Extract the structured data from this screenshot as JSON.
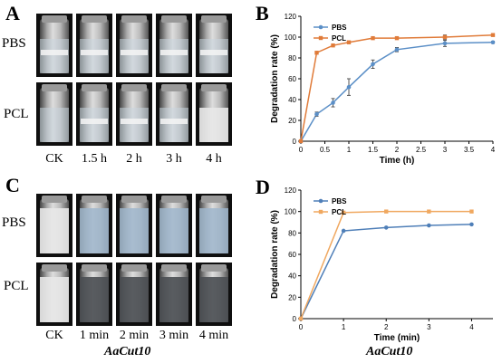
{
  "panels": {
    "A": {
      "letter": "A",
      "rows": [
        "PBS",
        "PCL"
      ],
      "conditions": [
        "CK",
        "1.5 h",
        "2 h",
        "3 h",
        "4 h"
      ]
    },
    "B": {
      "letter": "B"
    },
    "C": {
      "letter": "C",
      "rows": [
        "PBS",
        "PCL"
      ],
      "conditions": [
        "CK",
        "1 min",
        "2 min",
        "3 min",
        "4 min"
      ],
      "caption": "AaCut10"
    },
    "D": {
      "letter": "D",
      "caption": "AaCut10"
    }
  },
  "colors": {
    "pbs_B": "#5b8fc7",
    "pcl_B": "#e07b39",
    "pbs_D": "#4f7fb8",
    "pcl_D": "#f0a860"
  },
  "chart_data": [
    {
      "id": "B",
      "type": "line",
      "xlabel": "Time (h)",
      "ylabel": "Degradation rate (%)",
      "xlim": [
        0,
        4
      ],
      "ylim": [
        0,
        120
      ],
      "xticks": [
        "0",
        "0.5",
        "1",
        "1.5",
        "2",
        "2.5",
        "3",
        "3.5",
        "4"
      ],
      "yticks": [
        "0",
        "20",
        "40",
        "60",
        "80",
        "100",
        "120"
      ],
      "legend_position": "top-left",
      "series": [
        {
          "name": "PBS",
          "x": [
            0,
            0.33,
            0.67,
            1,
            1.5,
            2,
            3,
            4
          ],
          "y": [
            0,
            26,
            37,
            52,
            74,
            88,
            94,
            95
          ],
          "err": [
            0,
            2,
            4,
            8,
            4,
            2,
            3,
            1
          ]
        },
        {
          "name": "PCL",
          "x": [
            0,
            0.33,
            0.67,
            1,
            1.5,
            2,
            3,
            4
          ],
          "y": [
            0,
            85,
            92,
            95,
            99,
            99,
            100,
            102
          ],
          "err": [
            0,
            1,
            1,
            1,
            1,
            1,
            2,
            1
          ]
        }
      ]
    },
    {
      "id": "D",
      "type": "line",
      "xlabel": "Time (min)",
      "ylabel": "Degradation rate (%)",
      "xlim": [
        0,
        4.5
      ],
      "ylim": [
        0,
        120
      ],
      "xticks": [
        "0",
        "1",
        "2",
        "3",
        "4"
      ],
      "yticks": [
        "0",
        "20",
        "40",
        "60",
        "80",
        "100",
        "120"
      ],
      "legend_position": "top-left",
      "series": [
        {
          "name": "PBS",
          "x": [
            0,
            1,
            2,
            3,
            4
          ],
          "y": [
            0,
            82,
            85,
            87,
            88
          ]
        },
        {
          "name": "PCL",
          "x": [
            0,
            1,
            2,
            3,
            4
          ],
          "y": [
            0,
            99,
            100,
            100,
            100
          ]
        }
      ]
    }
  ]
}
